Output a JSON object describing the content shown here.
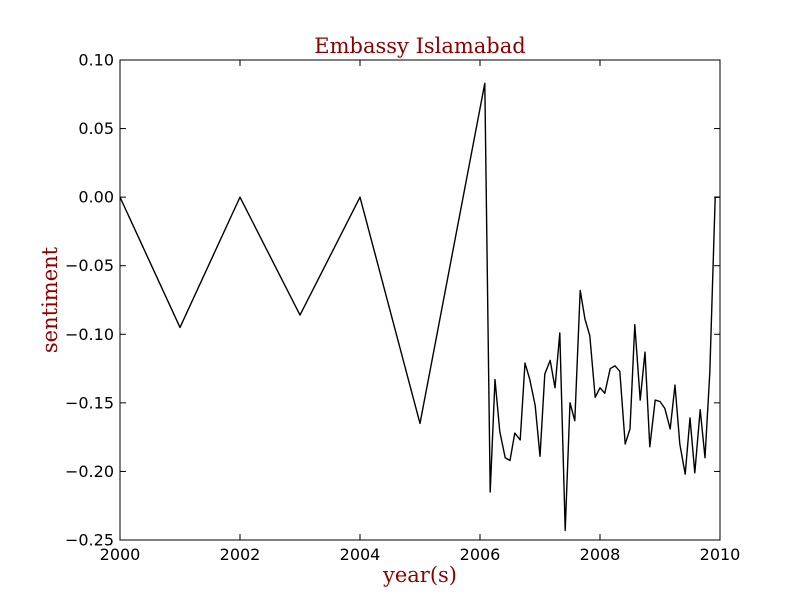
{
  "colors": {
    "background": "#ffffff",
    "title": "#8b0000",
    "line": "#000000",
    "axes": "#000000"
  },
  "chart_data": {
    "type": "line",
    "title": "Embassy Islamabad",
    "xlabel": "year(s)",
    "ylabel": "sentiment",
    "xlim": [
      2000,
      2010
    ],
    "ylim": [
      -0.25,
      0.1
    ],
    "grid": false,
    "xticks": [
      2000,
      2002,
      2004,
      2006,
      2008,
      2010
    ],
    "xtick_labels": [
      "2000",
      "2002",
      "2004",
      "2006",
      "2008",
      "2010"
    ],
    "yticks": [
      0.1,
      0.05,
      0.0,
      -0.05,
      -0.1,
      -0.15,
      -0.2,
      -0.25
    ],
    "ytick_labels": [
      "0.10",
      "0.05",
      "0.00",
      "−0.05",
      "−0.10",
      "−0.15",
      "−0.20",
      "−0.25"
    ],
    "series": [
      {
        "x": [
          2000.0,
          2001.0,
          2002.0,
          2003.0,
          2004.0,
          2005.0,
          2006.08,
          2006.17,
          2006.25,
          2006.33,
          2006.42,
          2006.5,
          2006.58,
          2006.67,
          2006.75,
          2006.83,
          2006.92,
          2007.0,
          2007.08,
          2007.17,
          2007.25,
          2007.33,
          2007.42,
          2007.5,
          2007.58,
          2007.67,
          2007.75,
          2007.83,
          2007.92,
          2008.0,
          2008.08,
          2008.17,
          2008.25,
          2008.33,
          2008.42,
          2008.5,
          2008.58,
          2008.67,
          2008.75,
          2008.83,
          2008.92,
          2009.0,
          2009.08,
          2009.17,
          2009.25,
          2009.33,
          2009.42,
          2009.5,
          2009.58,
          2009.67,
          2009.75,
          2009.83,
          2009.92,
          2010.0
        ],
        "y": [
          0.0,
          -0.095,
          0.0,
          -0.086,
          0.0,
          -0.165,
          0.083,
          -0.215,
          -0.133,
          -0.171,
          -0.19,
          -0.192,
          -0.172,
          -0.177,
          -0.121,
          -0.133,
          -0.152,
          -0.189,
          -0.129,
          -0.119,
          -0.139,
          -0.099,
          -0.243,
          -0.15,
          -0.163,
          -0.068,
          -0.089,
          -0.101,
          -0.146,
          -0.139,
          -0.143,
          -0.125,
          -0.123,
          -0.127,
          -0.18,
          -0.169,
          -0.093,
          -0.148,
          -0.113,
          -0.182,
          -0.148,
          -0.149,
          -0.154,
          -0.169,
          -0.137,
          -0.18,
          -0.202,
          -0.161,
          -0.201,
          -0.155,
          -0.19,
          -0.128,
          0.0,
          0.0
        ]
      }
    ]
  }
}
